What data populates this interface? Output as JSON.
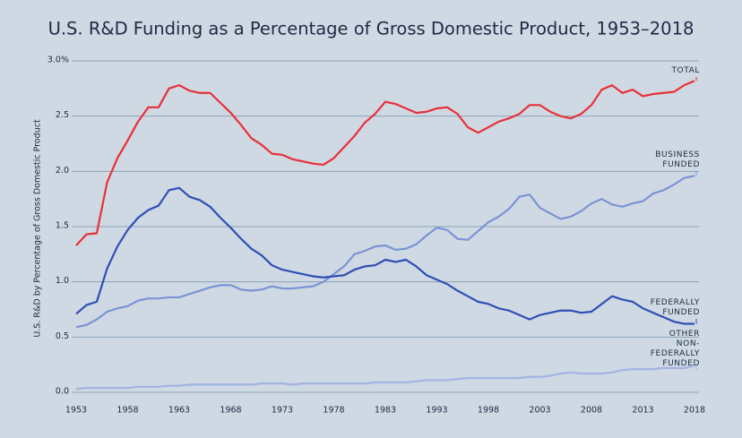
{
  "chart_data": {
    "type": "line",
    "title": "U.S. R&D Funding as a Percentage of Gross Domestic Product, 1953–2018",
    "y_label": "U.S. R&D by Percentage of Gross Domestic Product",
    "categories": [
      "1953",
      null,
      null,
      null,
      null,
      "1958",
      null,
      null,
      null,
      null,
      "1963",
      null,
      null,
      null,
      null,
      "1968",
      null,
      null,
      null,
      null,
      "1973",
      null,
      null,
      null,
      null,
      "1978",
      null,
      null,
      null,
      null,
      "1983",
      null,
      null,
      null,
      null,
      "1993",
      null,
      null,
      null,
      null,
      "1998",
      null,
      null,
      null,
      null,
      "2003",
      null,
      null,
      null,
      null,
      "2008",
      null,
      null,
      null,
      null,
      "2013",
      null,
      null,
      null,
      null,
      "2018"
    ],
    "ylim": [
      0,
      3
    ],
    "yticks": [
      {
        "value": 0,
        "label": "0.0"
      },
      0.5,
      {
        "value": 1,
        "label": "1.0"
      },
      1.5,
      {
        "value": 2,
        "label": "2.0"
      },
      2.5,
      {
        "value": 3,
        "label": "3.0%"
      }
    ],
    "grid": true,
    "series": [
      {
        "name": "TOTAL",
        "color": "#e8303a",
        "values": [
          1.33,
          1.43,
          1.44,
          1.9,
          2.12,
          2.28,
          2.45,
          2.58,
          2.58,
          2.75,
          2.78,
          2.73,
          2.71,
          2.71,
          2.62,
          2.53,
          2.42,
          2.3,
          2.24,
          2.16,
          2.15,
          2.11,
          2.09,
          2.07,
          2.06,
          2.12,
          2.22,
          2.32,
          2.44,
          2.52,
          2.63,
          2.61,
          2.57,
          2.53,
          2.54,
          2.57,
          2.58,
          2.52,
          2.4,
          2.35,
          2.4,
          2.45,
          2.48,
          2.52,
          2.6,
          2.6,
          2.54,
          2.5,
          2.48,
          2.52,
          2.6,
          2.74,
          2.78,
          2.71,
          2.74,
          2.68,
          2.7,
          2.71,
          2.72,
          2.78,
          2.82
        ]
      },
      {
        "name": "BUSINESS FUNDED",
        "color": "#7b93d6",
        "values": [
          0.59,
          0.61,
          0.66,
          0.73,
          0.76,
          0.78,
          0.83,
          0.85,
          0.85,
          0.86,
          0.86,
          0.89,
          0.92,
          0.95,
          0.97,
          0.97,
          0.93,
          0.92,
          0.93,
          0.96,
          0.94,
          0.94,
          0.95,
          0.96,
          1.0,
          1.07,
          1.14,
          1.25,
          1.28,
          1.32,
          1.33,
          1.29,
          1.3,
          1.34,
          1.42,
          1.49,
          1.47,
          1.39,
          1.38,
          1.46,
          1.54,
          1.59,
          1.66,
          1.77,
          1.79,
          1.67,
          1.62,
          1.57,
          1.59,
          1.64,
          1.71,
          1.75,
          1.7,
          1.68,
          1.71,
          1.73,
          1.8,
          1.83,
          1.88,
          1.94,
          1.96
        ]
      },
      {
        "name": "FEDERALLY FUNDED",
        "color": "#2f4fb5",
        "values": [
          0.71,
          0.79,
          0.82,
          1.12,
          1.32,
          1.47,
          1.58,
          1.65,
          1.69,
          1.83,
          1.85,
          1.77,
          1.74,
          1.68,
          1.58,
          1.49,
          1.39,
          1.3,
          1.24,
          1.15,
          1.11,
          1.09,
          1.07,
          1.05,
          1.04,
          1.05,
          1.06,
          1.11,
          1.14,
          1.15,
          1.2,
          1.18,
          1.2,
          1.14,
          1.06,
          1.02,
          0.98,
          0.92,
          0.87,
          0.82,
          0.8,
          0.76,
          0.74,
          0.7,
          0.66,
          0.7,
          0.72,
          0.74,
          0.74,
          0.72,
          0.73,
          0.8,
          0.87,
          0.84,
          0.82,
          0.76,
          0.72,
          0.68,
          0.64,
          0.62,
          0.62
        ]
      },
      {
        "name": "OTHER NON-FEDERALLY FUNDED",
        "color": "#a3b3e3",
        "values": [
          0.03,
          0.04,
          0.04,
          0.04,
          0.04,
          0.04,
          0.05,
          0.05,
          0.05,
          0.06,
          0.06,
          0.07,
          0.07,
          0.07,
          0.07,
          0.07,
          0.07,
          0.07,
          0.08,
          0.08,
          0.08,
          0.07,
          0.08,
          0.08,
          0.08,
          0.08,
          0.08,
          0.08,
          0.08,
          0.09,
          0.09,
          0.09,
          0.09,
          0.1,
          0.11,
          0.11,
          0.11,
          0.12,
          0.13,
          0.13,
          0.13,
          0.13,
          0.13,
          0.13,
          0.14,
          0.14,
          0.15,
          0.17,
          0.18,
          0.17,
          0.17,
          0.17,
          0.18,
          0.2,
          0.21,
          0.21,
          0.21,
          0.22,
          0.22,
          0.22,
          0.24
        ]
      }
    ]
  }
}
